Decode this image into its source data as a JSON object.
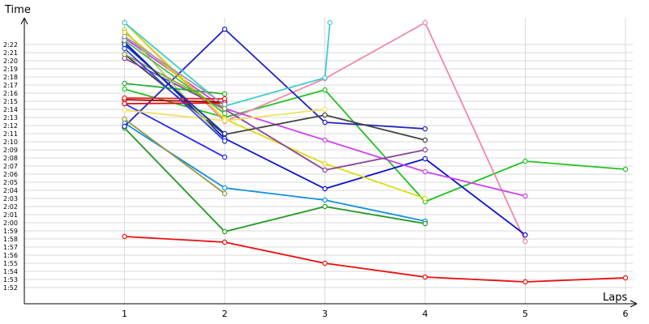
{
  "chart_data": {
    "type": "line",
    "title": "",
    "xlabel": "Laps",
    "ylabel": "Time",
    "x_ticks": [
      1,
      2,
      3,
      4,
      5,
      6
    ],
    "y_ticks": [
      "2:22",
      "2:21",
      "2:20",
      "2:19",
      "2:18",
      "2:17",
      "2:16",
      "2:15",
      "2:14",
      "2:13",
      "2:12",
      "2:11",
      "2:10",
      "2:09",
      "2:08",
      "2:07",
      "2:06",
      "2:05",
      "2:04",
      "2:03",
      "2:02",
      "2:01",
      "2:00",
      "1:59",
      "1:58",
      "1:57",
      "1:56",
      "1:55",
      "1:54",
      "1:53",
      "1:52"
    ],
    "y_tick_seconds": [
      142,
      141,
      140,
      139,
      138,
      137,
      136,
      135,
      134,
      133,
      132,
      131,
      130,
      129,
      128,
      127,
      126,
      125,
      124,
      123,
      122,
      121,
      120,
      119,
      118,
      117,
      116,
      115,
      114,
      113,
      112
    ],
    "grid": true,
    "legend": "none",
    "xlim": [
      0,
      6.05
    ],
    "ylim_seconds": [
      110.3,
      144.7
    ],
    "series": [
      {
        "color": "#e81010",
        "x": [
          1,
          2,
          3,
          4,
          5,
          6
        ],
        "y": [
          118.3,
          117.6,
          115.0,
          113.3,
          112.7,
          113.2
        ]
      },
      {
        "color": "#22c322",
        "x": [
          1,
          2,
          3,
          4,
          5,
          6
        ],
        "y": [
          136.5,
          133.0,
          136.4,
          122.6,
          127.6,
          126.6
        ]
      },
      {
        "color": "#ee88aa",
        "x": [
          1,
          2,
          3,
          4,
          5
        ],
        "y": [
          144.7,
          132.5,
          137.8,
          144.7,
          117.7
        ]
      },
      {
        "color": "#1010d0",
        "x": [
          1,
          2,
          3,
          4,
          5
        ],
        "y": [
          142.3,
          130.4,
          124.2,
          127.9,
          118.5
        ]
      },
      {
        "color": "#cc44ee",
        "x": [
          1,
          2,
          3,
          4,
          5
        ],
        "y": [
          142.8,
          134.1,
          130.2,
          126.3,
          123.3
        ]
      },
      {
        "color": "#1090e0",
        "x": [
          1,
          2,
          3,
          4
        ],
        "y": [
          132.3,
          124.3,
          122.8,
          120.2
        ]
      },
      {
        "color": "#229922",
        "x": [
          1,
          2,
          3,
          4
        ],
        "y": [
          131.7,
          118.9,
          122.0,
          119.9
        ]
      },
      {
        "color": "#dddd10",
        "x": [
          1,
          2,
          3,
          4
        ],
        "y": [
          144.7,
          132.8,
          127.3,
          123.0
        ]
      },
      {
        "color": "#2020c0",
        "x": [
          1,
          2,
          3,
          4
        ],
        "y": [
          131.9,
          143.9,
          132.4,
          131.6
        ]
      },
      {
        "color": "#444444",
        "x": [
          1,
          2,
          3,
          4
        ],
        "y": [
          140.8,
          130.9,
          133.3,
          130.2
        ]
      },
      {
        "color": "#884499",
        "x": [
          1,
          2,
          3,
          4
        ],
        "y": [
          140.3,
          134.0,
          126.5,
          129.0
        ]
      },
      {
        "color": "#999944",
        "x": [
          1,
          2
        ],
        "y": [
          132.8,
          123.6
        ]
      },
      {
        "color": "#2222ff",
        "x": [
          1,
          2
        ],
        "y": [
          134.7,
          128.1
        ]
      },
      {
        "color": "#44cccc",
        "x": [
          1,
          2,
          3,
          3.05
        ],
        "y": [
          144.7,
          134.4,
          137.9,
          144.7
        ]
      },
      {
        "color": "#aacc66",
        "x": [
          1,
          2
        ],
        "y": [
          143.8,
          130.0
        ]
      },
      {
        "color": "#88aa33",
        "x": [
          1,
          2
        ],
        "y": [
          140.8,
          134.1
        ]
      },
      {
        "color": "#ddcc00",
        "x": [
          1,
          2
        ],
        "y": [
          143.5,
          133.4
        ]
      },
      {
        "color": "#f0e060",
        "x": [
          1,
          2,
          3
        ],
        "y": [
          133.9,
          132.6,
          134.0
        ]
      },
      {
        "color": "#33aa33",
        "x": [
          1,
          2
        ],
        "y": [
          137.2,
          135.9
        ]
      },
      {
        "color": "#aa0000",
        "x": [
          1,
          2
        ],
        "y": [
          135.2,
          134.9
        ]
      },
      {
        "color": "#ee2020",
        "x": [
          1,
          2
        ],
        "y": [
          135.4,
          135.3
        ]
      },
      {
        "color": "#dd1010",
        "x": [
          1,
          2
        ],
        "y": [
          134.7,
          134.8
        ]
      },
      {
        "color": "#3344ee",
        "x": [
          1,
          2
        ],
        "y": [
          141.5,
          130.1
        ]
      },
      {
        "color": "#1133aa",
        "x": [
          1,
          2
        ],
        "y": [
          142.0,
          131.0
        ]
      },
      {
        "color": "#55bb55",
        "x": [
          1,
          2
        ],
        "y": [
          142.5,
          133.5
        ]
      },
      {
        "color": "#9999bb",
        "x": [
          1,
          2
        ],
        "y": [
          143.0,
          134.6
        ]
      }
    ]
  }
}
